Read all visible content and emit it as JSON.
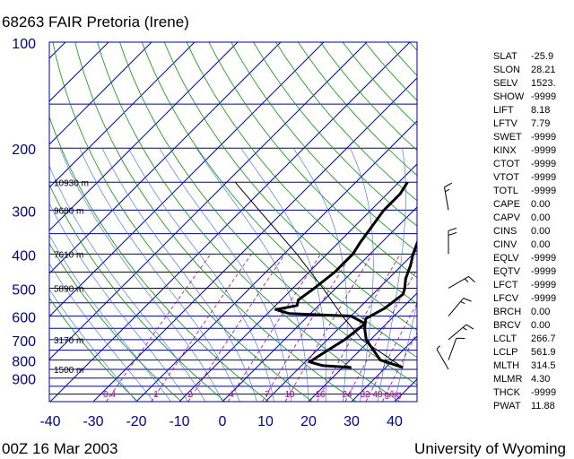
{
  "title": "68263 FAIR Pretoria (Irene)",
  "footer_left": "00Z 16 Mar 2003",
  "footer_right": "University of Wyoming",
  "colors": {
    "axis_text": "#0000a0",
    "isobar": "#00008b",
    "isotherm": "#0000cc",
    "dry_adiabat": "#009900",
    "moist_adiabat": "#3366ff",
    "mixing_ratio": "#aa00aa",
    "profile": "#000000",
    "label": "#000000"
  },
  "chart_data": {
    "type": "skew-t log-p sounding",
    "y_axis": {
      "pressure_ticks": [
        "100",
        "200",
        "300",
        "400",
        "500",
        "600",
        "700",
        "800",
        "900"
      ],
      "scale": "log",
      "range": [
        100,
        1050
      ]
    },
    "x_axis": {
      "temperature_ticks": [
        "-40",
        "-30",
        "-20",
        "-10",
        "0",
        "10",
        "20",
        "30",
        "40"
      ],
      "range": [
        -40,
        40
      ]
    },
    "height_labels": [
      {
        "text": "10930 m",
        "p": 250
      },
      {
        "text": "9680 m",
        "p": 300
      },
      {
        "text": "7610 m",
        "p": 400
      },
      {
        "text": "5890 m",
        "p": 500
      },
      {
        "text": "3170 m",
        "p": 700
      },
      {
        "text": "1500 m",
        "p": 850
      }
    ],
    "mixing_ratio_labels": [
      "0.4",
      "1",
      "2",
      "4",
      "7",
      "10",
      "16",
      "24",
      "32",
      "40",
      "g/kg"
    ],
    "temperature_profile": [
      {
        "p": 840,
        "t": 34
      },
      {
        "p": 800,
        "t": 27
      },
      {
        "p": 700,
        "t": 19
      },
      {
        "p": 650,
        "t": 16
      },
      {
        "p": 610,
        "t": 14
      },
      {
        "p": 590,
        "t": 15
      },
      {
        "p": 570,
        "t": 16
      },
      {
        "p": 520,
        "t": 17
      },
      {
        "p": 500,
        "t": 16
      },
      {
        "p": 470,
        "t": 14
      },
      {
        "p": 430,
        "t": 12
      },
      {
        "p": 400,
        "t": 10
      },
      {
        "p": 350,
        "t": 7
      },
      {
        "p": 300,
        "t": 6
      },
      {
        "p": 260,
        "t": 4
      },
      {
        "p": 250,
        "t": 3
      }
    ],
    "dewpoint_profile": [
      {
        "p": 840,
        "t": 22
      },
      {
        "p": 830,
        "t": 15
      },
      {
        "p": 810,
        "t": 11
      },
      {
        "p": 770,
        "t": 12
      },
      {
        "p": 700,
        "t": 14
      },
      {
        "p": 630,
        "t": 15
      },
      {
        "p": 600,
        "t": 10
      },
      {
        "p": 590,
        "t": -5
      },
      {
        "p": 575,
        "t": -9
      },
      {
        "p": 560,
        "t": -5
      },
      {
        "p": 540,
        "t": -6
      },
      {
        "p": 500,
        "t": -5
      },
      {
        "p": 450,
        "t": -4
      },
      {
        "p": 400,
        "t": -4
      },
      {
        "p": 370,
        "t": -5
      },
      {
        "p": 300,
        "t": -7
      },
      {
        "p": 270,
        "t": -7
      },
      {
        "p": 250,
        "t": -8
      }
    ],
    "parcel_profile": [
      {
        "p": 840,
        "t": 34
      },
      {
        "p": 700,
        "t": 18
      },
      {
        "p": 600,
        "t": 8
      },
      {
        "p": 500,
        "t": -3
      },
      {
        "p": 400,
        "t": -17
      },
      {
        "p": 300,
        "t": -36
      },
      {
        "p": 250,
        "t": -48
      }
    ],
    "wind_barbs": [
      {
        "p": 850,
        "dir": 330,
        "spd": 5
      },
      {
        "p": 800,
        "dir": 20,
        "spd": 10
      },
      {
        "p": 700,
        "dir": 50,
        "spd": 15
      },
      {
        "p": 600,
        "dir": 40,
        "spd": 15
      },
      {
        "p": 500,
        "dir": 60,
        "spd": 15
      },
      {
        "p": 400,
        "dir": 0,
        "spd": 20
      },
      {
        "p": 300,
        "dir": 350,
        "spd": 15
      }
    ],
    "indices": [
      {
        "label": "SLAT",
        "value": "-25.9"
      },
      {
        "label": "SLON",
        "value": "28.21"
      },
      {
        "label": "SELV",
        "value": "1523."
      },
      {
        "label": "SHOW",
        "value": "-9999"
      },
      {
        "label": "LIFT",
        "value": "8.18"
      },
      {
        "label": "LFTV",
        "value": "7.79"
      },
      {
        "label": "SWET",
        "value": "-9999"
      },
      {
        "label": "KINX",
        "value": "-9999"
      },
      {
        "label": "CTOT",
        "value": "-9999"
      },
      {
        "label": "VTOT",
        "value": "-9999"
      },
      {
        "label": "TOTL",
        "value": "-9999"
      },
      {
        "label": "CAPE",
        "value": "0.00"
      },
      {
        "label": "CAPV",
        "value": "0.00"
      },
      {
        "label": "CINS",
        "value": "0.00"
      },
      {
        "label": "CINV",
        "value": "0.00"
      },
      {
        "label": "EQLV",
        "value": "-9999"
      },
      {
        "label": "EQTV",
        "value": "-9999"
      },
      {
        "label": "LFCT",
        "value": "-9999"
      },
      {
        "label": "LFCV",
        "value": "-9999"
      },
      {
        "label": "BRCH",
        "value": "0.00"
      },
      {
        "label": "BRCV",
        "value": "0.00"
      },
      {
        "label": "LCLT",
        "value": "266.7"
      },
      {
        "label": "LCLP",
        "value": "561.9"
      },
      {
        "label": "MLTH",
        "value": "314.5"
      },
      {
        "label": "MLMR",
        "value": "4.30"
      },
      {
        "label": "THCK",
        "value": "-9999"
      },
      {
        "label": "PWAT",
        "value": "11.88"
      }
    ]
  }
}
